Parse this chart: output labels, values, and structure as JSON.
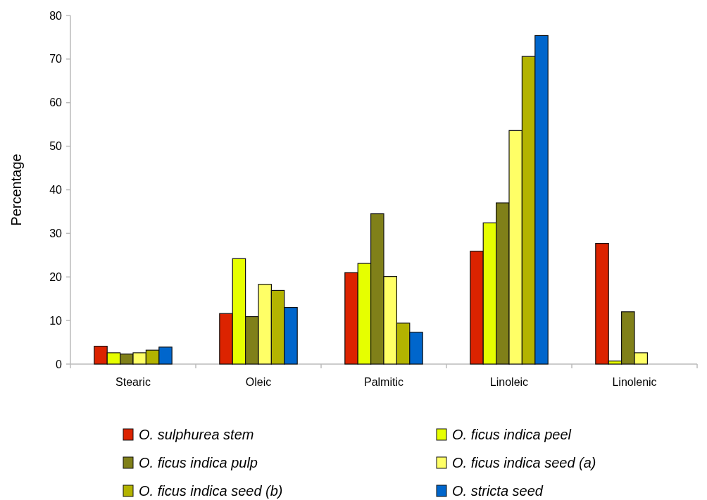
{
  "chart_data": {
    "type": "bar",
    "ylabel": "Percentage",
    "categories": [
      "Stearic",
      "Oleic",
      "Palmitic",
      "Linoleic",
      "Linolenic"
    ],
    "series": [
      {
        "name": "O. sulphurea stem",
        "color": "#dc2300",
        "values": [
          4.1,
          11.6,
          21.0,
          25.9,
          27.7
        ]
      },
      {
        "name": "O. ficus indica peel",
        "color": "#e6ff00",
        "values": [
          2.6,
          24.2,
          23.1,
          32.4,
          0.7
        ]
      },
      {
        "name": "O. ficus indica pulp",
        "color": "#808019",
        "values": [
          2.3,
          10.9,
          34.5,
          37.0,
          12.0
        ]
      },
      {
        "name": "O. ficus indica seed (a)",
        "color": "#ffff66",
        "values": [
          2.6,
          18.3,
          20.1,
          53.6,
          2.6
        ]
      },
      {
        "name": "O. ficus indica seed (b)",
        "color": "#b3b300",
        "values": [
          3.2,
          16.9,
          9.4,
          70.6,
          null
        ]
      },
      {
        "name": "O. stricta seed",
        "color": "#0066cc",
        "values": [
          3.9,
          13.0,
          7.3,
          75.4,
          null
        ]
      }
    ],
    "ylim": [
      0,
      80
    ],
    "yticks": [
      0,
      10,
      20,
      30,
      40,
      50,
      60,
      70,
      80
    ],
    "grid": false,
    "legend": "bottom"
  }
}
